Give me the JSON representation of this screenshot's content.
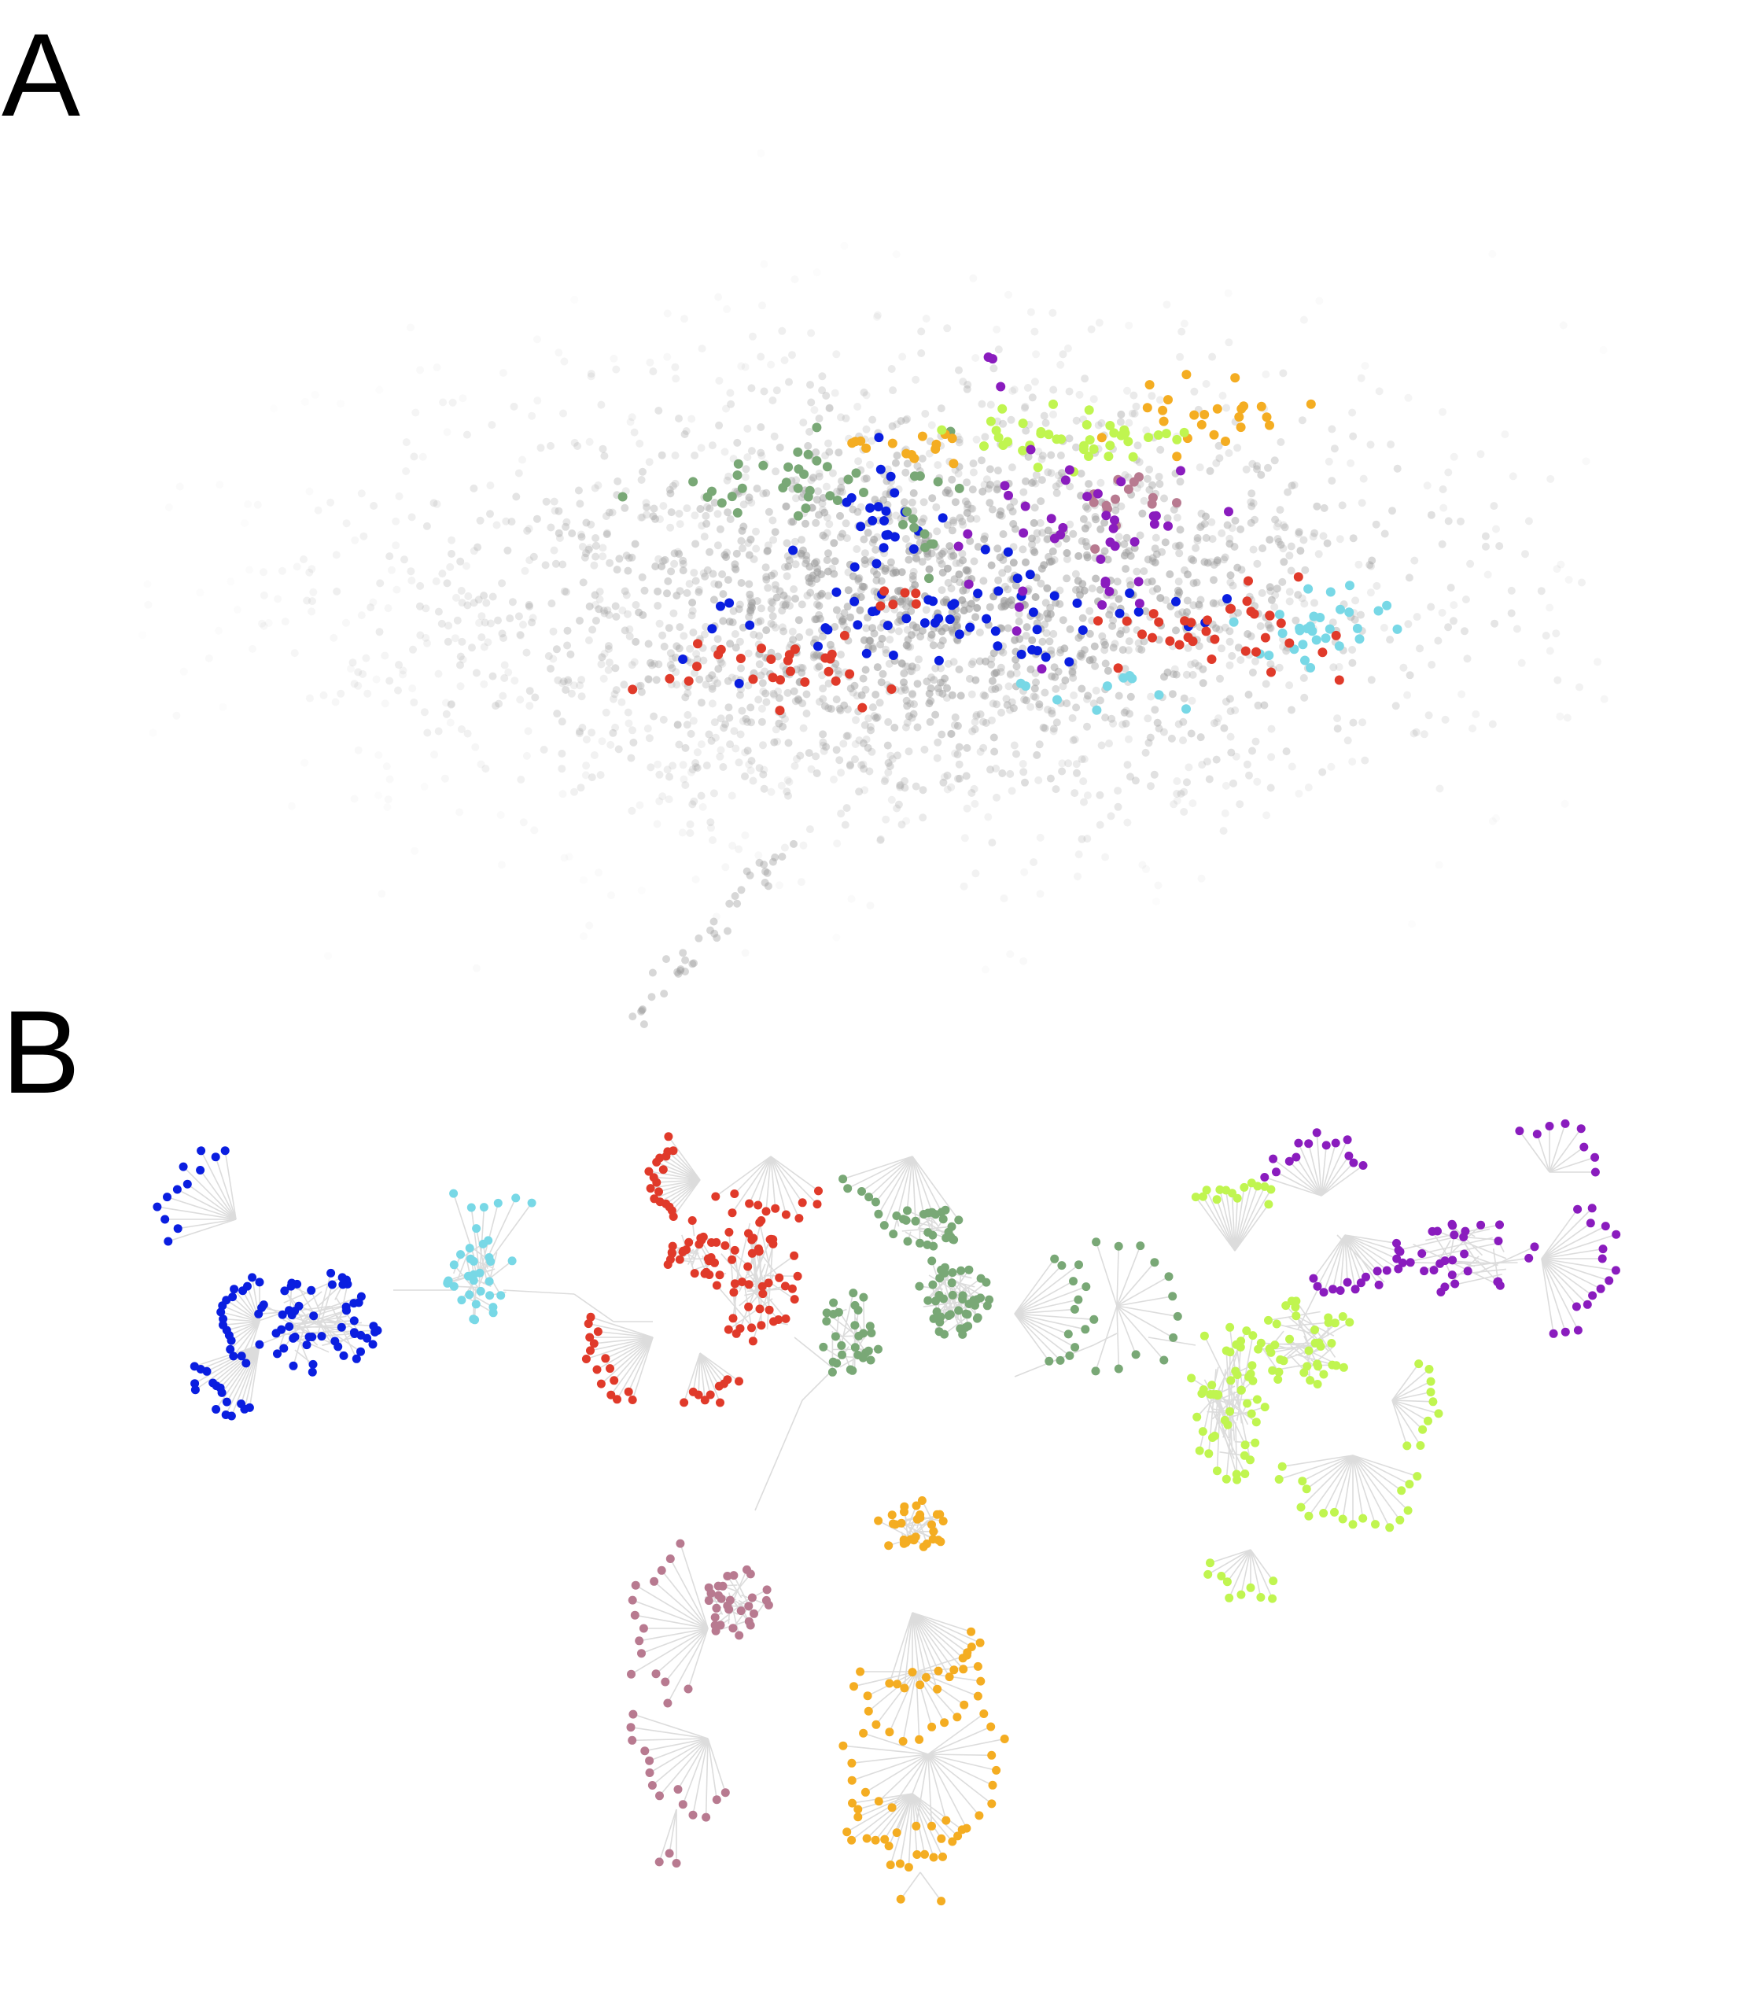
{
  "panels": [
    {
      "id": "a",
      "label": "A"
    },
    {
      "id": "b",
      "label": "B"
    }
  ],
  "colors": {
    "background_node": "#9a9a9a",
    "edge": "#dcdcdc",
    "blue": "#0a1ee0",
    "cyan": "#78d8e6",
    "red": "#e03a2a",
    "green": "#79a876",
    "pink": "#b87a90",
    "orange": "#f4ad22",
    "lime": "#c0f550",
    "purple": "#8a1cbe"
  },
  "clusters": [
    {
      "name": "blue-cluster",
      "color_key": "blue"
    },
    {
      "name": "cyan-cluster",
      "color_key": "cyan"
    },
    {
      "name": "red-cluster",
      "color_key": "red"
    },
    {
      "name": "green-cluster",
      "color_key": "green"
    },
    {
      "name": "pink-cluster",
      "color_key": "pink"
    },
    {
      "name": "orange-cluster",
      "color_key": "orange"
    },
    {
      "name": "lime-cluster",
      "color_key": "lime"
    },
    {
      "name": "purple-cluster",
      "color_key": "purple"
    }
  ]
}
